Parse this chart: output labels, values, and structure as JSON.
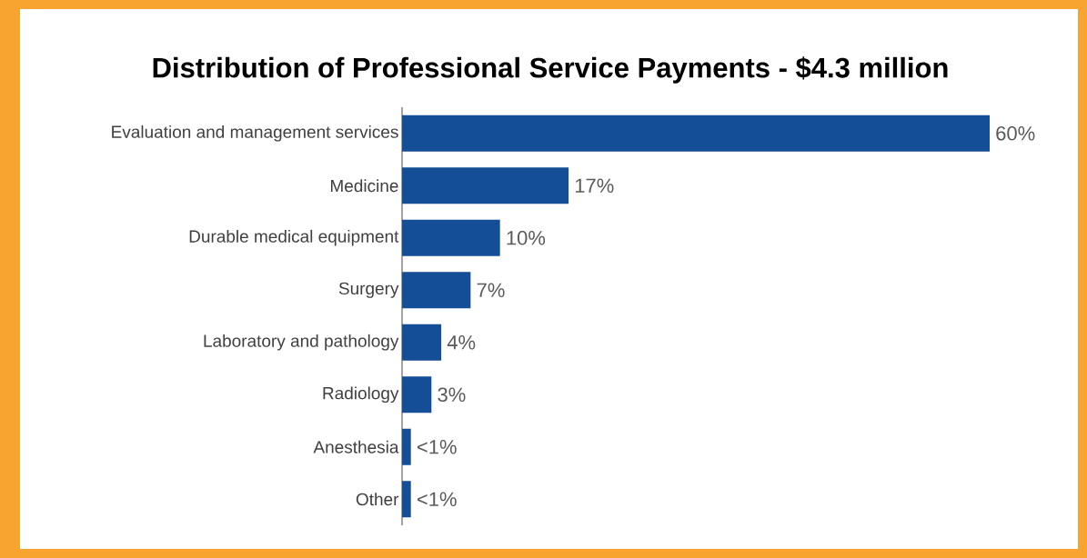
{
  "chart_data": {
    "type": "bar",
    "orientation": "horizontal",
    "title": "Distribution of Professional Service Payments - $4.3 million",
    "categories": [
      "Evaluation and management services",
      "Medicine",
      "Durable medical equipment",
      "Surgery",
      "Laboratory and pathology",
      "Radiology",
      "Anesthesia",
      "Other"
    ],
    "values": [
      60,
      17,
      10,
      7,
      4,
      3,
      0.9,
      0.9
    ],
    "value_labels": [
      "60%",
      "17%",
      "10%",
      "7%",
      "4%",
      "3%",
      "<1%",
      "<1%"
    ],
    "color": "#134e96"
  }
}
